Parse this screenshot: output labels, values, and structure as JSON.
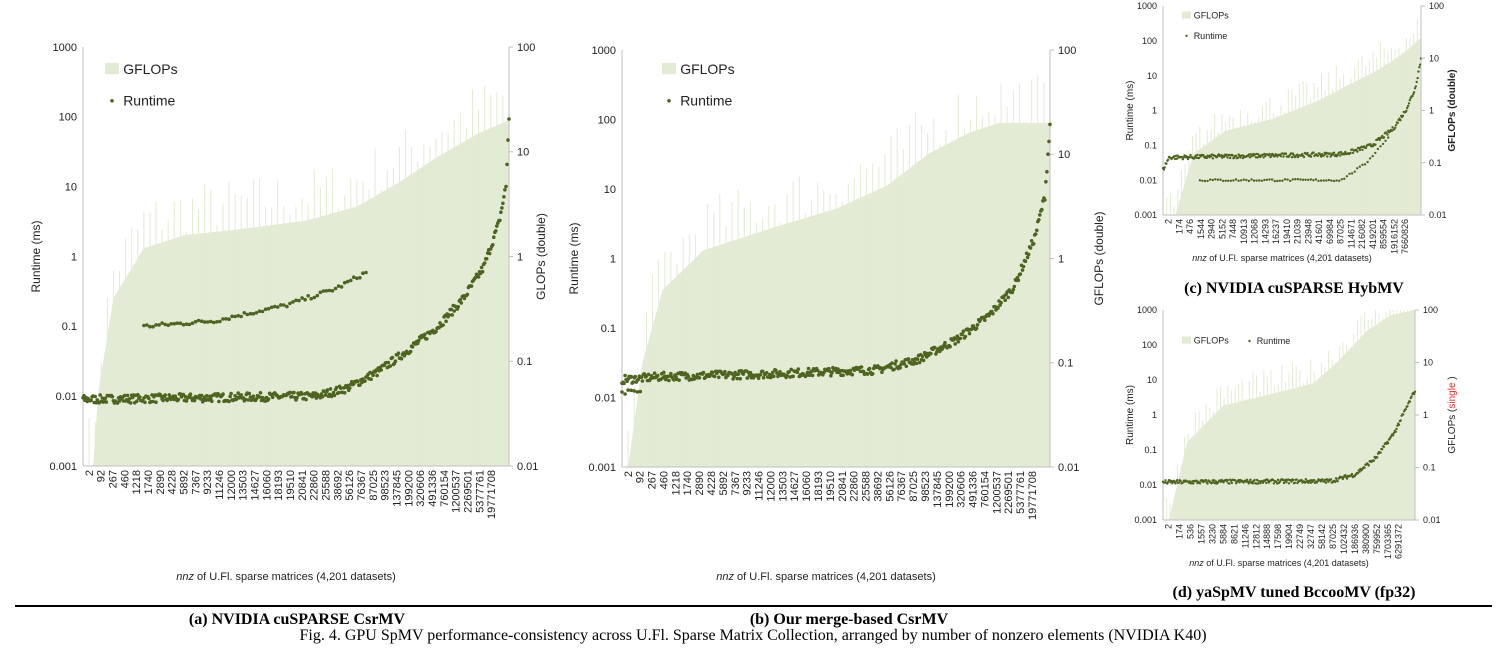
{
  "figure_caption": "Fig. 4.  GPU SpMV performance-consistency across U.Fl. Sparse Matrix  Collection, arranged by number of nonzero elements  (NVIDIA K40)",
  "colors": {
    "gflops": "#e3ebd4",
    "runtime": "#4e6421",
    "axis": "#bfbfbf",
    "single_highlight": "#e0302a"
  },
  "chart_data": [
    {
      "type": "bar+scatter",
      "caption": "(a) NVIDIA cuSPARSE CsrMV",
      "xlabel_italic": "nnz",
      "xlabel": " of U.Fl. sparse matrices (4,201 datasets)",
      "ylabel": "Runtime (ms)",
      "y2label": "GLOPs (double)",
      "y2label_highlight": "",
      "y2label_suffix": "",
      "yscale": "log",
      "ylim": [
        0.001,
        1000
      ],
      "yticks": [
        "0.001",
        "0.01",
        "0.1",
        "1",
        "10",
        "100",
        "1000"
      ],
      "y2scale": "log",
      "y2lim": [
        0.01,
        100
      ],
      "y2ticks": [
        "0.01",
        "0.1",
        "1",
        "10",
        "100"
      ],
      "legend": [
        "GFLOPs",
        "Runtime"
      ],
      "legend_layout": "vertical",
      "n": 4201,
      "xticks": [
        "2",
        "92",
        "267",
        "460",
        "1218",
        "1740",
        "2890",
        "4228",
        "5892",
        "7367",
        "9233",
        "11246",
        "12000",
        "13503",
        "14627",
        "16060",
        "18193",
        "19510",
        "20841",
        "22860",
        "25588",
        "38692",
        "56126",
        "76367",
        "87025",
        "98523",
        "137845",
        "199200",
        "320606",
        "491336",
        "760154",
        "1200537",
        "2269501",
        "5377761",
        "19771708"
      ],
      "gflops": [
        [
          0,
          0.01
        ],
        [
          100,
          0.01
        ],
        [
          150,
          0.05
        ],
        [
          300,
          0.4
        ],
        [
          600,
          1.2
        ],
        [
          1000,
          1.6
        ],
        [
          1500,
          1.8
        ],
        [
          2200,
          2.2
        ],
        [
          2700,
          3
        ],
        [
          3100,
          5
        ],
        [
          3500,
          9
        ],
        [
          3900,
          15
        ],
        [
          4200,
          20
        ]
      ],
      "runtime": [
        [
          0,
          0.009
        ],
        [
          2300,
          0.01
        ],
        [
          2600,
          0.013
        ],
        [
          2900,
          0.022
        ],
        [
          3200,
          0.045
        ],
        [
          3500,
          0.1
        ],
        [
          3750,
          0.25
        ],
        [
          3950,
          0.7
        ],
        [
          4100,
          3
        ],
        [
          4170,
          10
        ],
        [
          4200,
          100
        ]
      ],
      "runtime_secondary": [
        [
          600,
          0.1
        ],
        [
          1300,
          0.12
        ],
        [
          1500,
          0.14
        ],
        [
          2000,
          0.2
        ],
        [
          2500,
          0.35
        ],
        [
          2800,
          0.6
        ]
      ]
    },
    {
      "type": "bar+scatter",
      "caption": "(b) Our merge-based CsrMV",
      "xlabel_italic": "nnz",
      "xlabel": " of U.Fl. sparse matrices (4,201 datasets)",
      "ylabel": "Runtime (ms)",
      "y2label": "GFLOPs (double)",
      "y2label_highlight": "",
      "y2label_suffix": "",
      "yscale": "log",
      "ylim": [
        0.001,
        1000
      ],
      "yticks": [
        "0.001",
        "0.01",
        "0.1",
        "1",
        "10",
        "100",
        "1000"
      ],
      "y2scale": "log",
      "y2lim": [
        0.01,
        100
      ],
      "y2ticks": [
        "0.01",
        "0.1",
        "1",
        "10",
        "100"
      ],
      "legend": [
        "GFLOPs",
        "Runtime"
      ],
      "legend_layout": "vertical",
      "n": 4201,
      "xticks": [
        "2",
        "92",
        "267",
        "460",
        "1218",
        "1740",
        "2890",
        "4228",
        "5892",
        "7367",
        "9233",
        "11246",
        "12000",
        "13503",
        "14627",
        "16060",
        "18193",
        "19510",
        "20841",
        "22860",
        "25588",
        "38692",
        "56126",
        "76367",
        "87025",
        "98523",
        "137845",
        "199200",
        "320606",
        "491336",
        "760154",
        "1200537",
        "2269501",
        "5377761",
        "19771708"
      ],
      "gflops": [
        [
          0,
          0.01
        ],
        [
          60,
          0.01
        ],
        [
          200,
          0.1
        ],
        [
          400,
          0.5
        ],
        [
          800,
          1.2
        ],
        [
          1500,
          2
        ],
        [
          2100,
          3
        ],
        [
          2600,
          5
        ],
        [
          3000,
          10
        ],
        [
          3400,
          16
        ],
        [
          3700,
          20
        ],
        [
          4200,
          20
        ]
      ],
      "runtime": [
        [
          0,
          0.018
        ],
        [
          400,
          0.02
        ],
        [
          1500,
          0.022
        ],
        [
          2500,
          0.025
        ],
        [
          2900,
          0.035
        ],
        [
          3300,
          0.07
        ],
        [
          3600,
          0.15
        ],
        [
          3850,
          0.4
        ],
        [
          4050,
          2
        ],
        [
          4150,
          8
        ],
        [
          4200,
          80
        ]
      ],
      "runtime_secondary": [
        [
          0,
          0.012
        ],
        [
          200,
          0.012
        ]
      ]
    },
    {
      "type": "bar+scatter",
      "caption": "(c) NVIDIA cuSPARSE HybMV",
      "xlabel_italic": "nnz",
      "xlabel": " of U.Fl. sparse matrices (4,201 datasets)",
      "ylabel": "Runtime (ms)",
      "y2label": "GFLOPs (double)",
      "y2label_highlight": "",
      "y2label_suffix": "",
      "yscale": "log",
      "ylim": [
        0.001,
        1000
      ],
      "yticks": [
        "0.001",
        "0.01",
        "0.1",
        "1",
        "10",
        "100",
        "1000"
      ],
      "y2scale": "log",
      "y2lim": [
        0.01,
        100
      ],
      "y2ticks": [
        "0.01",
        "0.1",
        "1",
        "10",
        "100"
      ],
      "legend": [
        "GFLOPs",
        "Runtime"
      ],
      "legend_layout": "vertical",
      "n": 4201,
      "xticks": [
        "2",
        "174",
        "476",
        "1544",
        "2940",
        "5152",
        "7448",
        "10913",
        "12068",
        "14293",
        "16237",
        "19410",
        "21039",
        "23948",
        "41601",
        "69984",
        "87025",
        "114671",
        "216082",
        "419201",
        "859554",
        "1916152",
        "7660826"
      ],
      "gflops": [
        [
          0,
          0.01
        ],
        [
          200,
          0.01
        ],
        [
          500,
          0.15
        ],
        [
          1000,
          0.4
        ],
        [
          1800,
          0.7
        ],
        [
          2500,
          1.5
        ],
        [
          3000,
          3
        ],
        [
          3500,
          6
        ],
        [
          3900,
          12
        ],
        [
          4200,
          25
        ]
      ],
      "runtime": [
        [
          0,
          0.02
        ],
        [
          100,
          0.045
        ],
        [
          2800,
          0.055
        ],
        [
          3000,
          0.06
        ],
        [
          3400,
          0.1
        ],
        [
          3750,
          0.3
        ],
        [
          3950,
          1
        ],
        [
          4100,
          4
        ],
        [
          4200,
          30
        ]
      ],
      "runtime_secondary": [
        [
          600,
          0.01
        ],
        [
          2200,
          0.01
        ],
        [
          2900,
          0.01
        ],
        [
          3300,
          0.03
        ],
        [
          3700,
          0.2
        ]
      ]
    },
    {
      "type": "bar+scatter",
      "caption": "(d) yaSpMV tuned BccooMV (fp32)",
      "xlabel_italic": "nnz",
      "xlabel": " of U.Fl. sparse matrices (4,201 datasets)",
      "ylabel": "Runtime (ms)",
      "y2label": "GFLOPs (",
      "y2label_highlight": "single",
      "y2label_suffix": " )",
      "yscale": "log",
      "ylim": [
        0.001,
        1000
      ],
      "yticks": [
        "0.001",
        "0.01",
        "0.1",
        "1",
        "10",
        "100",
        "1000"
      ],
      "y2scale": "log",
      "y2lim": [
        0.01,
        100
      ],
      "y2ticks": [
        "0.01",
        "0.1",
        "1",
        "10",
        "100"
      ],
      "legend": [
        "GFLOPs",
        "Runtime"
      ],
      "legend_layout": "horizontal",
      "n": 4201,
      "xticks": [
        "2",
        "174",
        "536",
        "1557",
        "3230",
        "5884",
        "8621",
        "11246",
        "12812",
        "14888",
        "17598",
        "19904",
        "22749",
        "32747",
        "58142",
        "87025",
        "102432",
        "186936",
        "380900",
        "759952",
        "1703365",
        "6291372"
      ],
      "gflops": [
        [
          0,
          0.01
        ],
        [
          100,
          0.01
        ],
        [
          400,
          0.3
        ],
        [
          1000,
          1.5
        ],
        [
          1800,
          2.5
        ],
        [
          2500,
          4
        ],
        [
          2900,
          10
        ],
        [
          3400,
          40
        ],
        [
          3800,
          80
        ],
        [
          4200,
          100
        ]
      ],
      "runtime": [
        [
          0,
          0.012
        ],
        [
          2800,
          0.013
        ],
        [
          3200,
          0.02
        ],
        [
          3550,
          0.06
        ],
        [
          3850,
          0.3
        ],
        [
          4050,
          1.5
        ],
        [
          4200,
          5
        ]
      ],
      "runtime_secondary": []
    }
  ]
}
